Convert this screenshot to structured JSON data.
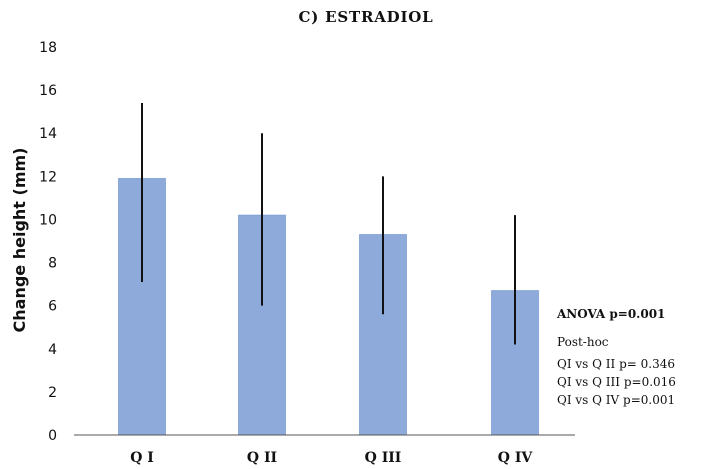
{
  "chart_data": {
    "type": "bar",
    "title": "C) ESTRADIOL",
    "xlabel": "",
    "ylabel": "Change  height (mm)",
    "categories": [
      "Q I",
      "Q II",
      "Q III",
      "Q IV"
    ],
    "values": [
      11.9,
      10.2,
      9.3,
      6.7
    ],
    "error_low": [
      7.1,
      6.0,
      5.6,
      4.2
    ],
    "error_high": [
      15.4,
      14.0,
      12.0,
      10.2
    ],
    "ylim": [
      0,
      18
    ],
    "yticks": [
      "0",
      "2",
      "4",
      "6",
      "8",
      "10",
      "12",
      "14",
      "16",
      "18"
    ],
    "grid": false,
    "legend": "none",
    "bar_color": "#8eaadb",
    "bar_edge_color": "#7f9fd3",
    "error_color": "#111111",
    "annotations": {
      "anova": "ANOVA p=0.001",
      "posthoc_title": "Post-hoc",
      "posthoc_lines": [
        "QI vs Q II p= 0.346",
        "QI vs Q III p=0.016",
        "QI vs Q IV p=0.001"
      ]
    }
  }
}
